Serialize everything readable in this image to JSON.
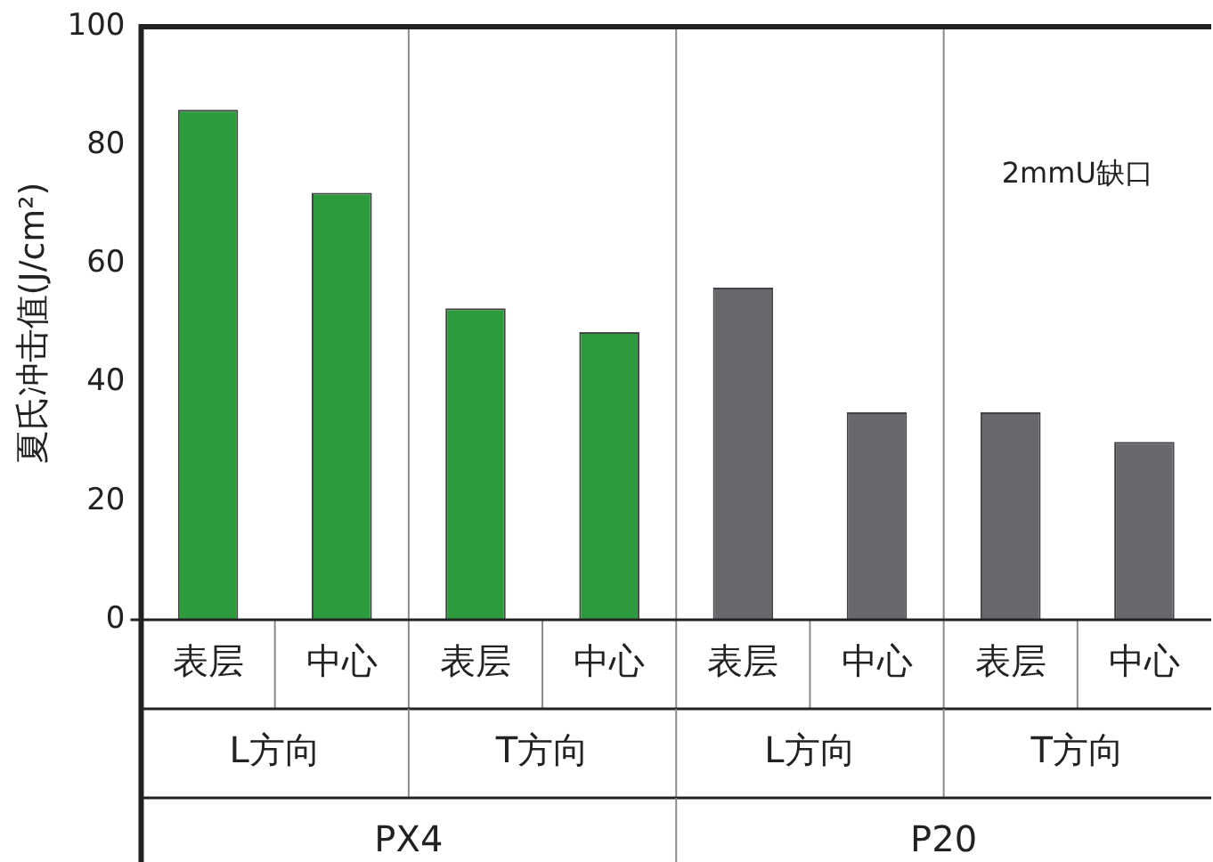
{
  "chart_data": {
    "type": "bar",
    "ylabel": "夏氏冲击值(J/cm²)",
    "categories": [
      "表层",
      "中心",
      "表层",
      "中心",
      "表层",
      "中心",
      "表层",
      "中心"
    ],
    "values": [
      86,
      72,
      52.5,
      48.5,
      56,
      35,
      35,
      30
    ],
    "colors": [
      "#2e9a3e",
      "#2e9a3e",
      "#2e9a3e",
      "#2e9a3e",
      "#68686c",
      "#68686c",
      "#68686c",
      "#68686c"
    ],
    "ylim": [
      0,
      100
    ],
    "yticks": [
      0,
      20,
      40,
      60,
      80,
      100
    ],
    "grid": false,
    "legend": false,
    "annotations": [
      "2mmU缺口",
      "L方向",
      "T方向",
      "L方向",
      "T方向",
      "PX4",
      "P20"
    ]
  }
}
